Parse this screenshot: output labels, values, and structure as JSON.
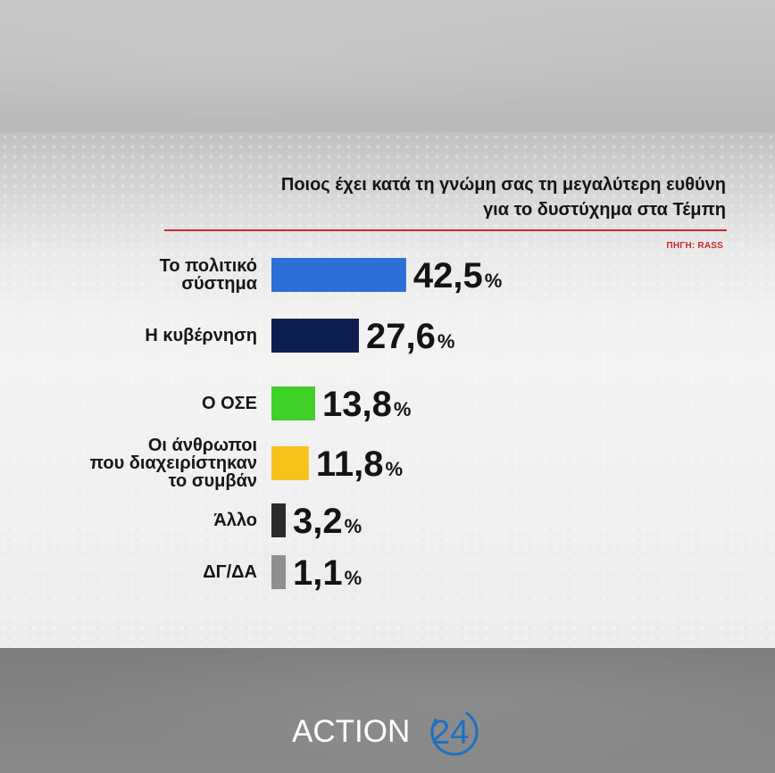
{
  "header": {
    "title_line1": "Ποιος έχει κατά τη γνώμη σας τη μεγαλύτερη ευθύνη",
    "title_line2": "για το δυστύχημα στα Τέμπη",
    "source": "ΠΗΓΗ: RASS"
  },
  "brand": {
    "logo_text": "ACTION",
    "logo_number": "24",
    "accent_color": "#c9272c",
    "logo_ring_color": "#1f6fc0"
  },
  "chart_data": {
    "type": "bar",
    "orientation": "horizontal",
    "title": "Ποιος έχει κατά τη γνώμη σας τη μεγαλύτερη ευθύνη για το δυστύχημα στα Τέμπη",
    "categories": [
      [
        "Το πολιτικό",
        "σύστημα"
      ],
      [
        "Η κυβέρνηση"
      ],
      [
        "Ο ΟΣΕ"
      ],
      [
        "Οι άνθρωποι",
        "που διαχειρίστηκαν",
        "το συμβάν"
      ],
      [
        "Άλλο"
      ],
      [
        "ΔΓ/ΔΑ"
      ]
    ],
    "values": [
      42.5,
      27.6,
      13.8,
      11.8,
      3.2,
      1.1
    ],
    "value_labels": [
      "42,5",
      "27,6",
      "13,8",
      "11,8",
      "3,2",
      "1,1"
    ],
    "unit": "%",
    "colors": [
      "#2c6fd6",
      "#0d1d4f",
      "#3fd128",
      "#f7c21a",
      "#2b2b2b",
      "#8f8f8f"
    ],
    "xlabel": "",
    "ylabel": "",
    "grid": false,
    "legend": "none"
  }
}
